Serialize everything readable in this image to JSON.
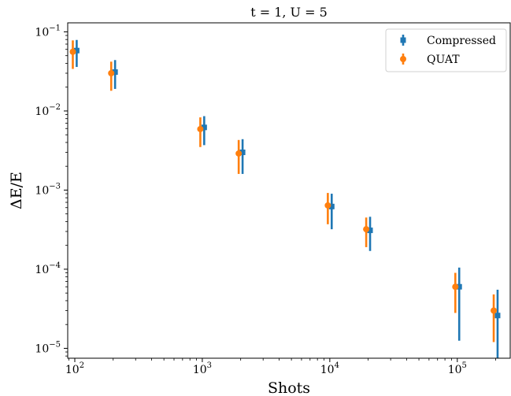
{
  "chart_data": {
    "type": "scatter",
    "title": "t = 1, U = 5",
    "xlabel": "Shots",
    "ylabel": "ΔE/E",
    "xscale": "log",
    "yscale": "log",
    "xlim": [
      88,
      260000
    ],
    "ylim": [
      7.5e-06,
      0.13
    ],
    "legend_position": "top-right",
    "x_ticks": [
      {
        "value": 100,
        "base": "10",
        "exp": "2"
      },
      {
        "value": 1000,
        "base": "10",
        "exp": "3"
      },
      {
        "value": 10000,
        "base": "10",
        "exp": "4"
      },
      {
        "value": 100000,
        "base": "10",
        "exp": "5"
      }
    ],
    "y_ticks": [
      {
        "value": 0.1,
        "base": "10",
        "exp": "−1"
      },
      {
        "value": 0.01,
        "base": "10",
        "exp": "−2"
      },
      {
        "value": 0.001,
        "base": "10",
        "exp": "−3"
      },
      {
        "value": 0.0001,
        "base": "10",
        "exp": "−4"
      },
      {
        "value": 1e-05,
        "base": "10",
        "exp": "−5"
      }
    ],
    "series": [
      {
        "name": "Compressed",
        "color": "#1f77b4",
        "marker": "square",
        "points": [
          {
            "x": 100,
            "y": 0.058,
            "ylow": 0.036,
            "yhigh": 0.079
          },
          {
            "x": 200,
            "y": 0.031,
            "ylow": 0.019,
            "yhigh": 0.044
          },
          {
            "x": 1000,
            "y": 0.0062,
            "ylow": 0.0037,
            "yhigh": 0.0086
          },
          {
            "x": 2000,
            "y": 0.003,
            "ylow": 0.0016,
            "yhigh": 0.0044
          },
          {
            "x": 10000,
            "y": 0.00062,
            "ylow": 0.00032,
            "yhigh": 0.0009
          },
          {
            "x": 20000,
            "y": 0.00031,
            "ylow": 0.00017,
            "yhigh": 0.00046
          },
          {
            "x": 100000,
            "y": 6e-05,
            "ylow": 1.25e-05,
            "yhigh": 0.000105
          },
          {
            "x": 200000,
            "y": 2.6e-05,
            "ylow": 7.5e-06,
            "yhigh": 5.5e-05
          }
        ]
      },
      {
        "name": "QUAT",
        "color": "#ff7f0e",
        "marker": "circle",
        "points": [
          {
            "x": 100,
            "y": 0.056,
            "ylow": 0.034,
            "yhigh": 0.078
          },
          {
            "x": 200,
            "y": 0.03,
            "ylow": 0.018,
            "yhigh": 0.042
          },
          {
            "x": 1000,
            "y": 0.0059,
            "ylow": 0.0035,
            "yhigh": 0.0083
          },
          {
            "x": 2000,
            "y": 0.0029,
            "ylow": 0.0016,
            "yhigh": 0.0043
          },
          {
            "x": 10000,
            "y": 0.00064,
            "ylow": 0.00037,
            "yhigh": 0.00092
          },
          {
            "x": 20000,
            "y": 0.00032,
            "ylow": 0.00019,
            "yhigh": 0.00045
          },
          {
            "x": 100000,
            "y": 6e-05,
            "ylow": 2.8e-05,
            "yhigh": 9e-05
          },
          {
            "x": 200000,
            "y": 3e-05,
            "ylow": 1.2e-05,
            "yhigh": 4.8e-05
          }
        ]
      }
    ]
  }
}
